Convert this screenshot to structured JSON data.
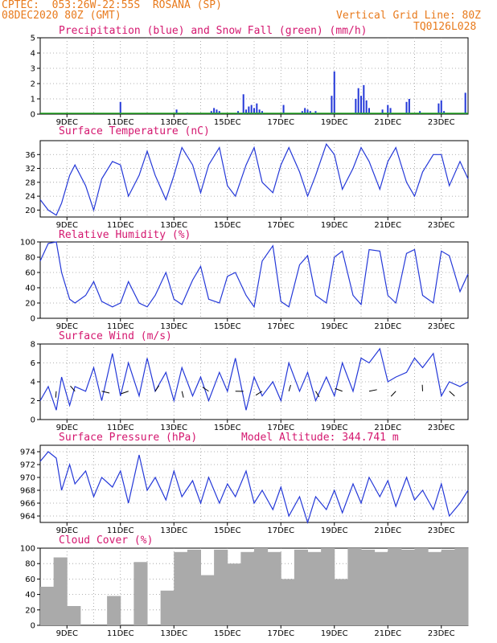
{
  "header": {
    "line1": "CPTEC:  053:26W-22:55S  ROSANA (SP)",
    "line2": "08DEC2020 80Z (GMT)",
    "vgrid": "Vertical Grid Line: 80Z",
    "code": "TQ0126L028"
  },
  "colors": {
    "header": "#e87a1c",
    "title": "#d4176f",
    "line": "#2438d8",
    "snow": "#22a822",
    "cloud": "#aaaaaa"
  },
  "chart_data": [
    {
      "id": "precip",
      "type": "bar",
      "title": "Precipitation (blue) and Snow Fall (green) (mm/h)",
      "xlabels": [
        "9DEC",
        "11DEC",
        "13DEC",
        "15DEC",
        "17DEC",
        "19DEC",
        "21DEC",
        "23DEC"
      ],
      "ylim": [
        0,
        5
      ],
      "yticks": [
        0,
        1,
        2,
        3,
        4,
        5
      ],
      "snowfall_value": 0,
      "bars": [
        [
          3.0,
          0.8
        ],
        [
          5.1,
          0.3
        ],
        [
          5.5,
          0.1
        ],
        [
          6.4,
          0.2
        ],
        [
          6.5,
          0.4
        ],
        [
          6.6,
          0.3
        ],
        [
          6.7,
          0.2
        ],
        [
          7.4,
          0.2
        ],
        [
          7.6,
          1.3
        ],
        [
          7.7,
          0.3
        ],
        [
          7.8,
          0.5
        ],
        [
          7.9,
          0.6
        ],
        [
          8.0,
          0.4
        ],
        [
          8.1,
          0.7
        ],
        [
          8.2,
          0.3
        ],
        [
          8.3,
          0.2
        ],
        [
          9.1,
          0.6
        ],
        [
          9.8,
          0.2
        ],
        [
          9.9,
          0.4
        ],
        [
          10.0,
          0.3
        ],
        [
          10.1,
          0.2
        ],
        [
          10.3,
          0.2
        ],
        [
          10.9,
          1.2
        ],
        [
          11.0,
          2.8
        ],
        [
          11.8,
          1.0
        ],
        [
          11.9,
          1.7
        ],
        [
          12.0,
          1.2
        ],
        [
          12.1,
          1.9
        ],
        [
          12.2,
          0.9
        ],
        [
          12.3,
          0.4
        ],
        [
          12.8,
          0.3
        ],
        [
          13.0,
          0.6
        ],
        [
          13.1,
          0.4
        ],
        [
          13.7,
          0.8
        ],
        [
          13.8,
          1.0
        ],
        [
          14.2,
          0.2
        ],
        [
          14.9,
          0.7
        ],
        [
          15.0,
          0.9
        ],
        [
          15.1,
          0.2
        ],
        [
          15.9,
          1.4
        ]
      ]
    },
    {
      "id": "temp",
      "type": "line",
      "title": "Surface Temperature (nC)",
      "xlabels": [
        "9DEC",
        "11DEC",
        "13DEC",
        "15DEC",
        "17DEC",
        "19DEC",
        "21DEC",
        "23DEC"
      ],
      "ylim": [
        18,
        40
      ],
      "yticks": [
        20,
        24,
        28,
        32,
        36
      ],
      "x": [
        0,
        0.3,
        0.6,
        0.8,
        1.1,
        1.3,
        1.7,
        2.0,
        2.3,
        2.7,
        3.0,
        3.3,
        3.7,
        4.0,
        4.3,
        4.7,
        5.0,
        5.3,
        5.7,
        6.0,
        6.3,
        6.7,
        7.0,
        7.3,
        7.7,
        8.0,
        8.3,
        8.7,
        9.0,
        9.3,
        9.7,
        10.0,
        10.3,
        10.7,
        11.0,
        11.3,
        11.7,
        12.0,
        12.3,
        12.7,
        13.0,
        13.3,
        13.7,
        14.0,
        14.3,
        14.7,
        15.0,
        15.3,
        15.7,
        16.0
      ],
      "y": [
        23,
        20,
        18.5,
        22,
        30,
        33,
        27,
        20,
        29,
        34,
        33,
        24,
        30,
        37,
        30,
        23,
        30,
        38,
        33,
        25,
        33,
        38,
        27,
        24,
        33,
        38,
        28,
        25,
        33,
        38,
        31,
        24,
        30,
        39,
        36,
        26,
        32,
        38,
        34,
        26,
        34,
        38,
        28,
        24,
        31,
        36,
        36,
        27,
        34,
        29
      ]
    },
    {
      "id": "rh",
      "type": "line",
      "title": "Relative Humidity (%)",
      "xlabels": [
        "9DEC",
        "11DEC",
        "13DEC",
        "15DEC",
        "17DEC",
        "19DEC",
        "21DEC",
        "23DEC"
      ],
      "ylim": [
        0,
        100
      ],
      "yticks": [
        0,
        20,
        40,
        60,
        80,
        100
      ],
      "x": [
        0,
        0.3,
        0.6,
        0.8,
        1.1,
        1.3,
        1.7,
        2.0,
        2.3,
        2.7,
        3.0,
        3.3,
        3.7,
        4.0,
        4.3,
        4.7,
        5.0,
        5.3,
        5.7,
        6.0,
        6.3,
        6.7,
        7.0,
        7.3,
        7.7,
        8.0,
        8.3,
        8.7,
        9.0,
        9.3,
        9.7,
        10.0,
        10.3,
        10.7,
        11.0,
        11.3,
        11.7,
        12.0,
        12.3,
        12.7,
        13.0,
        13.3,
        13.7,
        14.0,
        14.3,
        14.7,
        15.0,
        15.3,
        15.7,
        16.0
      ],
      "y": [
        75,
        98,
        100,
        60,
        25,
        20,
        30,
        48,
        22,
        15,
        20,
        48,
        20,
        15,
        30,
        60,
        25,
        18,
        50,
        68,
        25,
        20,
        55,
        60,
        30,
        15,
        75,
        95,
        22,
        15,
        70,
        82,
        30,
        20,
        80,
        88,
        30,
        18,
        90,
        88,
        30,
        20,
        85,
        90,
        30,
        20,
        88,
        82,
        35,
        58
      ]
    },
    {
      "id": "wind",
      "type": "line",
      "title": "Surface Wind (m/s)",
      "xlabels": [
        "9DEC",
        "11DEC",
        "13DEC",
        "15DEC",
        "17DEC",
        "19DEC",
        "21DEC",
        "23DEC"
      ],
      "ylim": [
        0,
        8
      ],
      "yticks": [
        0,
        2,
        4,
        6,
        8
      ],
      "x": [
        0,
        0.3,
        0.6,
        0.8,
        1.1,
        1.3,
        1.7,
        2.0,
        2.3,
        2.7,
        3.0,
        3.3,
        3.7,
        4.0,
        4.3,
        4.7,
        5.0,
        5.3,
        5.7,
        6.0,
        6.3,
        6.7,
        7.0,
        7.3,
        7.7,
        8.0,
        8.3,
        8.7,
        9.0,
        9.3,
        9.7,
        10.0,
        10.3,
        10.7,
        11.0,
        11.3,
        11.7,
        12.0,
        12.3,
        12.7,
        13.0,
        13.3,
        13.7,
        14.0,
        14.3,
        14.7,
        15.0,
        15.3,
        15.7,
        16.0
      ],
      "y": [
        2,
        3.5,
        1,
        4.5,
        1.5,
        3.5,
        3,
        5.5,
        2,
        7,
        2.5,
        6,
        2.5,
        6.5,
        3,
        5,
        2,
        5.5,
        2.5,
        4.5,
        2,
        5,
        3,
        6.5,
        1,
        4.5,
        2.5,
        4,
        2,
        6,
        3,
        5,
        2,
        4.5,
        2.5,
        6,
        3,
        6.5,
        6,
        7.5,
        4,
        4.5,
        5,
        6.5,
        5.5,
        7,
        2.5,
        4,
        3.5,
        4
      ]
    },
    {
      "id": "press",
      "type": "line",
      "title": "Surface Pressure (hPa)",
      "annotation": "Model Altitude: 344.741  m",
      "xlabels": [
        "9DEC",
        "11DEC",
        "13DEC",
        "15DEC",
        "17DEC",
        "19DEC",
        "21DEC",
        "23DEC"
      ],
      "ylim": [
        963,
        975
      ],
      "yticks": [
        964,
        966,
        968,
        970,
        972,
        974
      ],
      "x": [
        0,
        0.3,
        0.6,
        0.8,
        1.1,
        1.3,
        1.7,
        2.0,
        2.3,
        2.7,
        3.0,
        3.3,
        3.7,
        4.0,
        4.3,
        4.7,
        5.0,
        5.3,
        5.7,
        6.0,
        6.3,
        6.7,
        7.0,
        7.3,
        7.7,
        8.0,
        8.3,
        8.7,
        9.0,
        9.3,
        9.7,
        10.0,
        10.3,
        10.7,
        11.0,
        11.3,
        11.7,
        12.0,
        12.3,
        12.7,
        13.0,
        13.3,
        13.7,
        14.0,
        14.3,
        14.7,
        15.0,
        15.3,
        15.7,
        16.0
      ],
      "y": [
        972.5,
        974,
        973,
        968,
        972,
        969,
        971,
        967,
        970,
        968.5,
        971,
        966,
        973.5,
        968,
        970,
        966.5,
        971,
        967,
        969.5,
        966,
        970,
        966,
        969,
        967,
        971,
        966,
        968,
        965,
        968.5,
        964,
        967,
        963,
        967,
        965,
        968,
        964.5,
        969,
        966,
        970,
        967,
        969.5,
        965.5,
        970,
        966.5,
        968,
        965,
        969,
        964,
        966,
        968
      ]
    },
    {
      "id": "cloud",
      "type": "bar",
      "title": "Cloud Cover (%)",
      "xlabels": [
        "9DEC",
        "11DEC",
        "13DEC",
        "15DEC",
        "17DEC",
        "19DEC",
        "21DEC",
        "23DEC"
      ],
      "ylim": [
        0,
        100
      ],
      "yticks": [
        0,
        20,
        40,
        60,
        80,
        100
      ],
      "x": [
        0,
        0.5,
        1.0,
        1.5,
        2.0,
        2.5,
        3.0,
        3.5,
        4.0,
        4.5,
        5.0,
        5.5,
        6.0,
        6.5,
        7.0,
        7.5,
        8.0,
        8.5,
        9.0,
        9.5,
        10.0,
        10.5,
        11.0,
        11.5,
        12.0,
        12.5,
        13.0,
        13.5,
        14.0,
        14.5,
        15.0,
        15.5
      ],
      "y": [
        50,
        88,
        25,
        0,
        0,
        38,
        0,
        82,
        0,
        45,
        95,
        98,
        65,
        98,
        80,
        95,
        100,
        95,
        60,
        98,
        95,
        100,
        60,
        100,
        98,
        95,
        100,
        98,
        100,
        95,
        98,
        100
      ]
    }
  ]
}
